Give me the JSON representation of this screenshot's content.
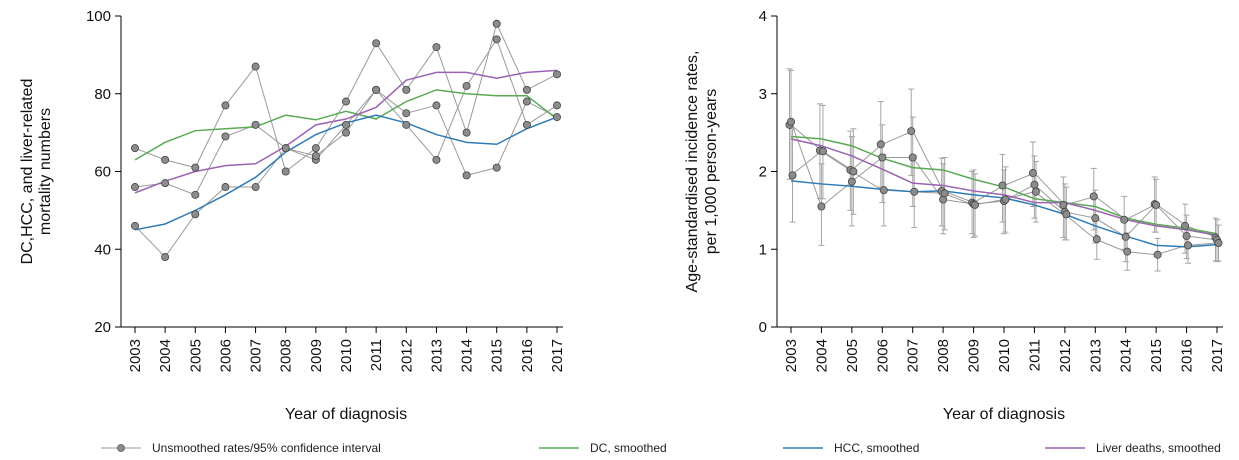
{
  "colors": {
    "dc": "#5aaa55",
    "hcc": "#2f7bb6",
    "liver": "#9b62b3",
    "unsmoothed_line": "#9a9a9a",
    "unsmoothed_marker": "#8c8c8c",
    "axis": "#000000"
  },
  "legend": {
    "unsmoothed": "Unsmoothed rates/95% confidence interval",
    "dc": "DC, smoothed",
    "hcc": "HCC, smoothed",
    "liver": "Liver deaths, smoothed"
  },
  "chart_data": [
    {
      "type": "line",
      "ylabel_lines": [
        "DC,HCC, and liver-related",
        "mortality numbers"
      ],
      "xlabel": "Year of diagnosis",
      "ylim": [
        20,
        100
      ],
      "yticks": [
        20,
        40,
        60,
        80,
        100
      ],
      "categories": [
        "2003",
        "2004",
        "2005",
        "2006",
        "2007",
        "2008",
        "2009",
        "2010",
        "2011",
        "2012",
        "2013",
        "2014",
        "2015",
        "2016",
        "2017"
      ],
      "unsmoothed": [
        {
          "values": [
            66,
            63,
            61,
            77,
            87,
            60,
            66,
            78,
            93,
            81,
            92,
            70,
            98,
            81,
            85
          ]
        },
        {
          "values": [
            56,
            57,
            54,
            69,
            72,
            66,
            63,
            72,
            81,
            72,
            63,
            82,
            94,
            72,
            77
          ]
        },
        {
          "values": [
            46,
            38,
            49,
            56,
            56,
            66,
            64,
            70,
            81,
            75,
            77,
            59,
            61,
            78,
            74
          ]
        }
      ],
      "smoothed": [
        {
          "key": "dc",
          "values": [
            63,
            67.5,
            70.5,
            71,
            71.5,
            74.5,
            73.3,
            75.5,
            73.5,
            78,
            81,
            80,
            79.5,
            79.5,
            73.5
          ]
        },
        {
          "key": "hcc",
          "values": [
            45,
            46.5,
            50,
            54,
            58.5,
            65,
            69.5,
            72.5,
            74.5,
            72.5,
            69.5,
            67.5,
            67,
            71,
            74
          ]
        },
        {
          "key": "liver",
          "values": [
            54.5,
            57.5,
            60,
            61.5,
            62,
            66.5,
            72,
            73.5,
            76.5,
            83.5,
            85.5,
            85.5,
            84,
            85.5,
            86
          ]
        }
      ]
    },
    {
      "type": "line",
      "ylabel_lines": [
        "Age-standardised incidence rates,",
        "per 1,000 person-years"
      ],
      "xlabel": "Year of diagnosis",
      "ylim": [
        0,
        4
      ],
      "yticks": [
        0,
        1,
        2,
        3,
        4
      ],
      "categories": [
        "2003",
        "2004",
        "2005",
        "2006",
        "2007",
        "2008",
        "2009",
        "2010",
        "2011",
        "2012",
        "2013",
        "2014",
        "2015",
        "2016",
        "2017"
      ],
      "unsmoothed": [
        {
          "values": [
            2.6,
            2.27,
            2.02,
            2.35,
            2.52,
            1.75,
            1.6,
            1.82,
            1.98,
            1.57,
            1.68,
            1.38,
            1.58,
            1.3,
            1.15
          ],
          "lower": [
            1.9,
            1.65,
            1.5,
            1.8,
            1.95,
            1.3,
            1.2,
            1.35,
            1.55,
            1.15,
            1.25,
            1.0,
            1.22,
            0.95,
            0.85
          ],
          "upper": [
            3.32,
            2.87,
            2.52,
            2.9,
            3.06,
            2.17,
            2.0,
            2.22,
            2.38,
            1.93,
            2.04,
            1.68,
            1.93,
            1.58,
            1.4
          ]
        },
        {
          "values": [
            2.64,
            1.55,
            1.87,
            2.18,
            2.18,
            1.64,
            1.58,
            1.62,
            1.83,
            1.48,
            1.4,
            1.16,
            1.57,
            1.17,
            1.12
          ],
          "lower": [
            1.9,
            1.05,
            1.3,
            1.6,
            1.55,
            1.2,
            1.15,
            1.2,
            1.4,
            1.12,
            1.08,
            0.84,
            1.22,
            0.88,
            0.84
          ],
          "upper": [
            3.3,
            2.1,
            2.45,
            2.6,
            2.7,
            2.1,
            2.02,
            2.02,
            2.2,
            1.84,
            1.76,
            1.4,
            1.9,
            1.44,
            1.38
          ]
        },
        {
          "values": [
            1.95,
            2.26,
            2.0,
            1.76,
            1.74,
            1.72,
            1.57,
            1.64,
            1.74,
            1.45,
            1.13,
            0.97,
            0.93,
            1.05,
            1.08
          ],
          "lower": [
            1.35,
            1.65,
            1.45,
            1.3,
            1.28,
            1.25,
            1.17,
            1.22,
            1.35,
            1.12,
            0.87,
            0.73,
            0.72,
            0.82,
            0.85
          ],
          "upper": [
            2.55,
            2.85,
            2.55,
            2.22,
            2.2,
            2.18,
            1.97,
            2.06,
            2.13,
            1.8,
            1.39,
            1.21,
            1.14,
            1.28,
            1.31
          ]
        }
      ],
      "smoothed": [
        {
          "key": "dc",
          "values": [
            2.45,
            2.42,
            2.33,
            2.17,
            2.05,
            2.02,
            1.9,
            1.8,
            1.65,
            1.6,
            1.55,
            1.4,
            1.32,
            1.27,
            1.2
          ]
        },
        {
          "key": "hcc",
          "values": [
            1.88,
            1.84,
            1.81,
            1.77,
            1.74,
            1.75,
            1.7,
            1.66,
            1.57,
            1.45,
            1.3,
            1.17,
            1.05,
            1.03,
            1.06
          ]
        },
        {
          "key": "liver",
          "values": [
            2.42,
            2.33,
            2.2,
            2.03,
            1.85,
            1.82,
            1.75,
            1.7,
            1.6,
            1.6,
            1.5,
            1.38,
            1.3,
            1.25,
            1.18
          ]
        }
      ]
    }
  ]
}
